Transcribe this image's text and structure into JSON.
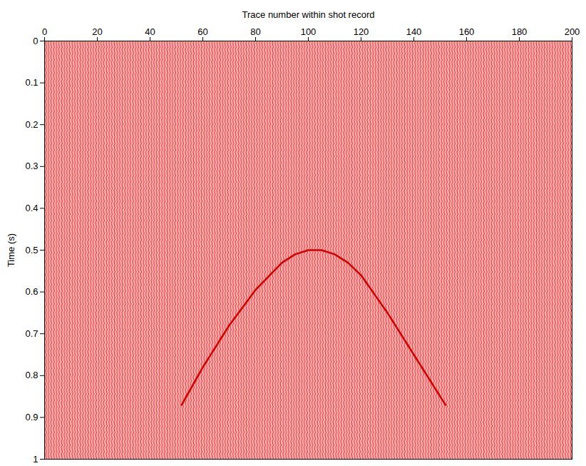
{
  "chart_data": {
    "type": "line",
    "x_label": "Trace number within shot record",
    "y_label": "Time (s)",
    "x": [
      52,
      60,
      70,
      80,
      90,
      95,
      100,
      105,
      110,
      115,
      120,
      130,
      140,
      152
    ],
    "values": [
      0.87,
      0.78,
      0.68,
      0.595,
      0.53,
      0.51,
      0.5,
      0.5,
      0.51,
      0.53,
      0.56,
      0.65,
      0.75,
      0.87
    ],
    "color": "#d40000",
    "xlim": [
      0,
      200
    ],
    "xticks": [
      0,
      20,
      40,
      60,
      80,
      100,
      120,
      140,
      160,
      180,
      200
    ],
    "ylim": [
      0,
      1
    ],
    "yticks": [
      0,
      0.1,
      0.2,
      0.3,
      0.4,
      0.5,
      0.6,
      0.7,
      0.8,
      0.9,
      1
    ]
  }
}
